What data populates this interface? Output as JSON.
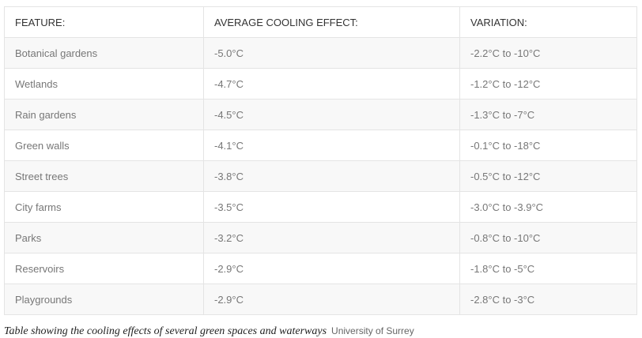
{
  "table": {
    "header": [
      "FEATURE:",
      "AVERAGE COOLING EFFECT:",
      "VARIATION:"
    ],
    "rows": [
      [
        "Botanical gardens",
        "-5.0°C",
        "-2.2°C to -10°C"
      ],
      [
        "Wetlands",
        "-4.7°C",
        "-1.2°C to -12°C"
      ],
      [
        "Rain gardens",
        "-4.5°C",
        "-1.3°C to -7°C"
      ],
      [
        "Green walls",
        "-4.1°C",
        "-0.1°C to -18°C"
      ],
      [
        "Street trees",
        "-3.8°C",
        "-0.5°C to -12°C"
      ],
      [
        "City farms",
        "-3.5°C",
        "-3.0°C to -3.9°C"
      ],
      [
        "Parks",
        "-3.2°C",
        "-0.8°C to -10°C"
      ],
      [
        "Reservoirs",
        "-2.9°C",
        "-1.8°C to -5°C"
      ],
      [
        "Playgrounds",
        "-2.9°C",
        "-2.8°C to -3°C"
      ]
    ]
  },
  "caption": {
    "text": "Table showing the cooling effects of several green spaces and waterways",
    "credit": "University of Surrey"
  }
}
